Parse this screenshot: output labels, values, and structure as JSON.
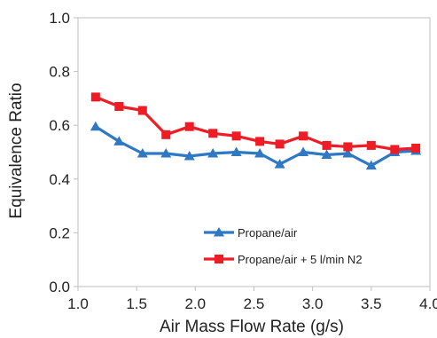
{
  "chart_data": {
    "type": "line",
    "xlabel": "Air Mass Flow Rate (g/s)",
    "ylabel": "Equivalence Ratio",
    "xlim": [
      1.0,
      4.0
    ],
    "ylim": [
      0.0,
      1.0
    ],
    "xticks": [
      "1.0",
      "1.5",
      "2.0",
      "2.5",
      "3.0",
      "3.5",
      "4.0"
    ],
    "yticks": [
      "0.0",
      "0.2",
      "0.4",
      "0.6",
      "0.8",
      "1.0"
    ],
    "grid": false,
    "legend_position": "bottom-right inside",
    "series": [
      {
        "name": "Propane/air",
        "color": "#2f78c4",
        "marker": "triangle",
        "x": [
          1.15,
          1.35,
          1.55,
          1.75,
          1.95,
          2.15,
          2.35,
          2.55,
          2.72,
          2.92,
          3.12,
          3.3,
          3.5,
          3.7,
          3.88
        ],
        "values": [
          0.595,
          0.54,
          0.495,
          0.495,
          0.485,
          0.495,
          0.5,
          0.495,
          0.455,
          0.5,
          0.49,
          0.495,
          0.45,
          0.5,
          0.505
        ]
      },
      {
        "name": "Propane/air + 5 l/min N2",
        "color": "#ee1c25",
        "marker": "square",
        "x": [
          1.15,
          1.35,
          1.55,
          1.75,
          1.95,
          2.15,
          2.35,
          2.55,
          2.72,
          2.92,
          3.12,
          3.3,
          3.5,
          3.7,
          3.88
        ],
        "values": [
          0.705,
          0.67,
          0.655,
          0.565,
          0.595,
          0.57,
          0.56,
          0.54,
          0.53,
          0.56,
          0.525,
          0.52,
          0.525,
          0.51,
          0.515
        ]
      }
    ]
  }
}
